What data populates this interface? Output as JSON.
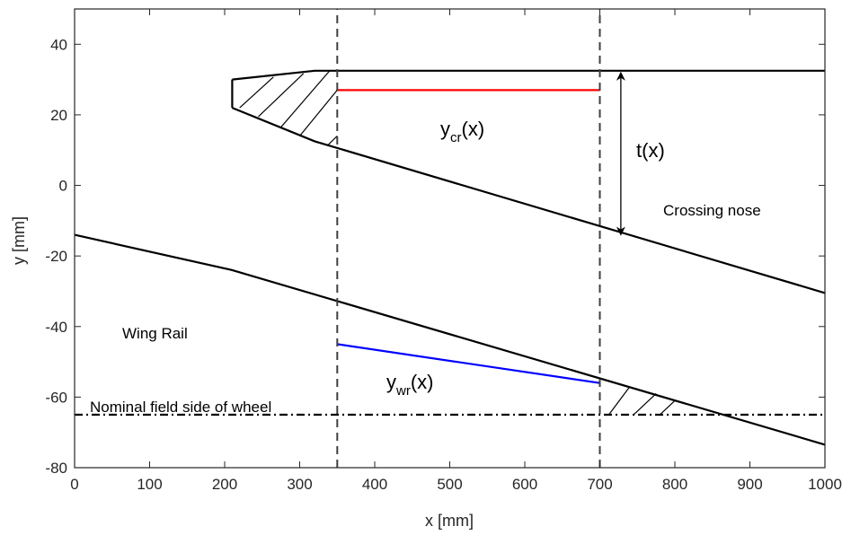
{
  "chart_data": {
    "type": "line",
    "xlabel": "x [mm]",
    "ylabel": "y [mm]",
    "xlim": [
      0,
      1000
    ],
    "ylim": [
      -80,
      50
    ],
    "xticks": [
      0,
      100,
      200,
      300,
      400,
      500,
      600,
      700,
      800,
      900,
      1000
    ],
    "yticks": [
      -80,
      -60,
      -40,
      -20,
      0,
      20,
      40
    ],
    "grid": false,
    "series": [
      {
        "key": "crossing_nose_top",
        "color": "#000000",
        "style": "solid",
        "x": [
          210,
          320,
          1000
        ],
        "y": [
          30,
          32.5,
          32.5
        ]
      },
      {
        "key": "crossing_nose_tip",
        "color": "#000000",
        "style": "solid",
        "x": [
          210,
          210
        ],
        "y": [
          30,
          22
        ]
      },
      {
        "key": "crossing_nose_bottom",
        "color": "#000000",
        "style": "solid",
        "x": [
          210,
          320,
          1000
        ],
        "y": [
          22,
          12.5,
          -30.5
        ]
      },
      {
        "key": "wing_rail",
        "color": "#000000",
        "style": "solid",
        "x": [
          0,
          210,
          1000
        ],
        "y": [
          -14,
          -24,
          -73.5
        ]
      },
      {
        "key": "y_cr",
        "color": "#ff0000",
        "style": "solid",
        "x": [
          350,
          700
        ],
        "y": [
          27,
          27
        ]
      },
      {
        "key": "y_wr",
        "color": "#0000ff",
        "style": "solid",
        "x": [
          350,
          700
        ],
        "y": [
          -45,
          -56
        ]
      },
      {
        "key": "x_350",
        "color": "#404040",
        "style": "dashed",
        "x": [
          350,
          350
        ],
        "y": [
          -80,
          50
        ]
      },
      {
        "key": "x_700",
        "color": "#404040",
        "style": "dashed",
        "x": [
          700,
          700
        ],
        "y": [
          -80,
          50
        ]
      },
      {
        "key": "nominal_field_side",
        "color": "#000000",
        "style": "dashdot",
        "x": [
          0,
          1000
        ],
        "y": [
          -65,
          -65
        ]
      }
    ],
    "hatch_lines": [
      {
        "x1": 220,
        "y1": 22,
        "x2": 265,
        "y2": 30.7
      },
      {
        "x1": 245,
        "y1": 19.5,
        "x2": 305,
        "y2": 31.7
      },
      {
        "x1": 275,
        "y1": 16.5,
        "x2": 340,
        "y2": 32.5
      },
      {
        "x1": 300,
        "y1": 14,
        "x2": 350,
        "y2": 27
      },
      {
        "x1": 338,
        "y1": 11.5,
        "x2": 350,
        "y2": 14
      },
      {
        "x1": 712,
        "y1": -65,
        "x2": 740,
        "y2": -57
      },
      {
        "x1": 745,
        "y1": -65,
        "x2": 775,
        "y2": -59
      },
      {
        "x1": 780,
        "y1": -65,
        "x2": 800,
        "y2": -61
      }
    ],
    "arrow": {
      "x": 728,
      "y1": 32.5,
      "y2": -14
    },
    "annotations": {
      "ycr_main": "y",
      "ycr_sub": "cr",
      "ycr_tail": "(x)",
      "ywr_main": "y",
      "ywr_sub": "wr",
      "ywr_tail": "(x)",
      "thickness": "t(x)",
      "crossing_nose": "Crossing nose",
      "wing_rail": "Wing Rail",
      "nominal_field_side": "Nominal field side of wheel"
    }
  }
}
